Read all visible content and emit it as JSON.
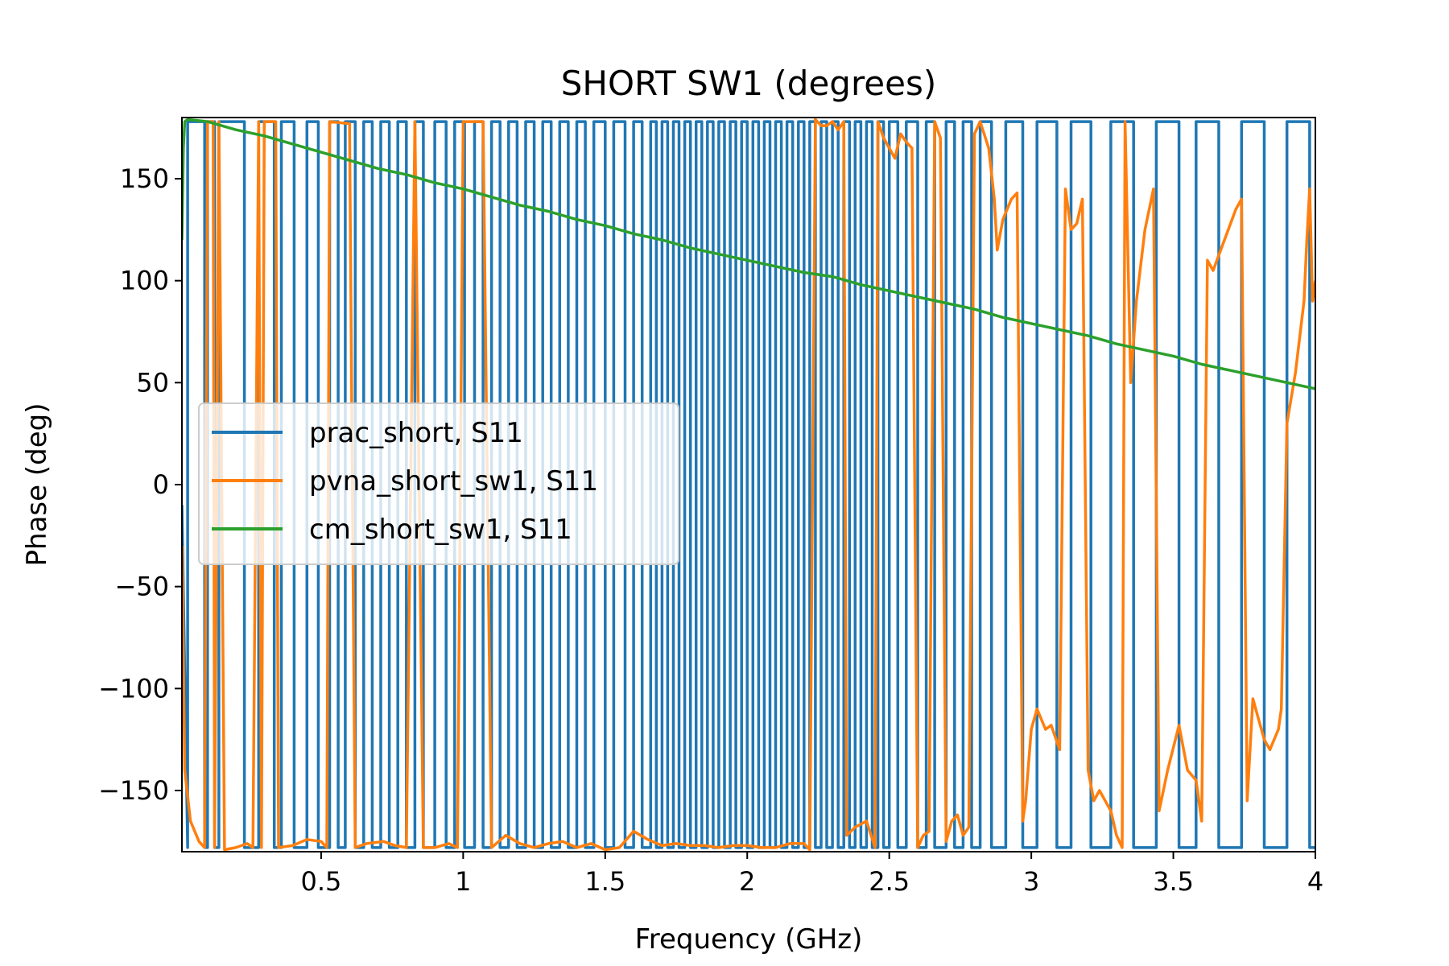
{
  "chart_data": {
    "type": "line",
    "title": "SHORT SW1 (degrees)",
    "xlabel": "Frequency (GHz)",
    "ylabel": "Phase (deg)",
    "xlim": [
      0.01,
      4.0
    ],
    "ylim": [
      -180,
      180
    ],
    "x_ticks": [
      0.5,
      1,
      1.5,
      2,
      2.5,
      3,
      3.5,
      4
    ],
    "x_tick_labels": [
      "0.5",
      "1",
      "1.5",
      "2",
      "2.5",
      "3",
      "3.5",
      "4"
    ],
    "y_ticks": [
      -150,
      -100,
      -50,
      0,
      50,
      100,
      150
    ],
    "y_tick_labels": [
      "−150",
      "−100",
      "−50",
      "0",
      "50",
      "100",
      "150"
    ],
    "grid": false,
    "legend_position": "center-left",
    "series": [
      {
        "name": "prac_short, S11",
        "color": "#1f77b4",
        "wrap_jump_ghz": [
          0.03,
          0.09,
          0.1,
          0.125,
          0.14,
          0.23,
          0.28,
          0.335,
          0.36,
          0.405,
          0.45,
          0.49,
          0.53,
          0.56,
          0.585,
          0.62,
          0.65,
          0.68,
          0.71,
          0.74,
          0.77,
          0.8,
          0.83,
          0.86,
          0.9,
          0.94,
          0.97,
          1.005,
          1.04,
          1.07,
          1.1,
          1.13,
          1.16,
          1.19,
          1.22,
          1.25,
          1.28,
          1.31,
          1.34,
          1.37,
          1.4,
          1.43,
          1.46,
          1.5,
          1.53,
          1.57,
          1.6,
          1.63,
          1.66,
          1.68,
          1.7,
          1.72,
          1.74,
          1.76,
          1.78,
          1.8,
          1.82,
          1.84,
          1.86,
          1.88,
          1.9,
          1.92,
          1.94,
          1.96,
          1.98,
          2.0,
          2.02,
          2.04,
          2.06,
          2.08,
          2.1,
          2.12,
          2.14,
          2.16,
          2.18,
          2.2,
          2.22,
          2.24,
          2.26,
          2.28,
          2.3,
          2.32,
          2.34,
          2.36,
          2.38,
          2.4,
          2.42,
          2.44,
          2.46,
          2.48,
          2.5,
          2.53,
          2.56,
          2.6,
          2.63,
          2.66,
          2.7,
          2.73,
          2.76,
          2.79,
          2.82,
          2.86,
          2.91,
          2.97,
          3.02,
          3.09,
          3.14,
          3.21,
          3.28,
          3.36,
          3.44,
          3.52,
          3.58,
          3.66,
          3.74,
          3.82,
          3.9,
          3.98
        ]
      },
      {
        "name": "pvna_short_sw1, S11",
        "color": "#ff7f0e",
        "points": [
          [
            0.01,
            -30
          ],
          [
            0.02,
            -140
          ],
          [
            0.04,
            -165
          ],
          [
            0.07,
            -175
          ],
          [
            0.09,
            -178
          ],
          [
            0.1,
            178
          ],
          [
            0.12,
            178
          ],
          [
            0.125,
            -178
          ],
          [
            0.14,
            178
          ],
          [
            0.16,
            -179
          ],
          [
            0.2,
            -178
          ],
          [
            0.24,
            -176
          ],
          [
            0.26,
            -178
          ],
          [
            0.28,
            178
          ],
          [
            0.29,
            -178
          ],
          [
            0.3,
            178
          ],
          [
            0.34,
            178
          ],
          [
            0.35,
            -178
          ],
          [
            0.4,
            -177
          ],
          [
            0.45,
            -174
          ],
          [
            0.5,
            -175
          ],
          [
            0.52,
            -178
          ],
          [
            0.53,
            178
          ],
          [
            0.6,
            177
          ],
          [
            0.62,
            -178
          ],
          [
            0.66,
            -176
          ],
          [
            0.72,
            -175
          ],
          [
            0.76,
            -177
          ],
          [
            0.8,
            -178
          ],
          [
            0.83,
            178
          ],
          [
            0.86,
            -178
          ],
          [
            0.9,
            -178
          ],
          [
            0.95,
            -176
          ],
          [
            0.98,
            -178
          ],
          [
            1.0,
            178
          ],
          [
            1.07,
            178
          ],
          [
            1.1,
            -178
          ],
          [
            1.15,
            -172
          ],
          [
            1.2,
            -176
          ],
          [
            1.25,
            -178
          ],
          [
            1.3,
            -176
          ],
          [
            1.35,
            -175
          ],
          [
            1.4,
            -178
          ],
          [
            1.45,
            -176
          ],
          [
            1.5,
            -179
          ],
          [
            1.55,
            -178
          ],
          [
            1.6,
            -170
          ],
          [
            1.65,
            -174
          ],
          [
            1.7,
            -177
          ],
          [
            1.75,
            -176
          ],
          [
            1.8,
            -177
          ],
          [
            1.85,
            -177
          ],
          [
            1.9,
            -178
          ],
          [
            1.95,
            -177
          ],
          [
            2.0,
            -177
          ],
          [
            2.05,
            -178
          ],
          [
            2.1,
            -178
          ],
          [
            2.15,
            -176
          ],
          [
            2.2,
            -176
          ],
          [
            2.22,
            -179
          ],
          [
            2.24,
            179
          ],
          [
            2.26,
            176
          ],
          [
            2.28,
            176
          ],
          [
            2.3,
            178
          ],
          [
            2.32,
            174
          ],
          [
            2.34,
            178
          ],
          [
            2.35,
            -172
          ],
          [
            2.38,
            -168
          ],
          [
            2.42,
            -165
          ],
          [
            2.45,
            -178
          ],
          [
            2.46,
            178
          ],
          [
            2.48,
            170
          ],
          [
            2.5,
            165
          ],
          [
            2.52,
            160
          ],
          [
            2.54,
            172
          ],
          [
            2.56,
            168
          ],
          [
            2.58,
            165
          ],
          [
            2.6,
            -178
          ],
          [
            2.62,
            -172
          ],
          [
            2.64,
            -170
          ],
          [
            2.66,
            178
          ],
          [
            2.68,
            170
          ],
          [
            2.7,
            -175
          ],
          [
            2.72,
            -165
          ],
          [
            2.74,
            -162
          ],
          [
            2.76,
            -172
          ],
          [
            2.78,
            -168
          ],
          [
            2.8,
            172
          ],
          [
            2.82,
            178
          ],
          [
            2.85,
            165
          ],
          [
            2.87,
            140
          ],
          [
            2.88,
            115
          ],
          [
            2.9,
            130
          ],
          [
            2.93,
            140
          ],
          [
            2.95,
            143
          ],
          [
            2.97,
            -165
          ],
          [
            2.98,
            -155
          ],
          [
            3.0,
            -120
          ],
          [
            3.02,
            -110
          ],
          [
            3.05,
            -120
          ],
          [
            3.07,
            -118
          ],
          [
            3.1,
            -130
          ],
          [
            3.12,
            145
          ],
          [
            3.14,
            125
          ],
          [
            3.16,
            128
          ],
          [
            3.18,
            140
          ],
          [
            3.2,
            -140
          ],
          [
            3.22,
            -155
          ],
          [
            3.24,
            -150
          ],
          [
            3.26,
            -155
          ],
          [
            3.28,
            -160
          ],
          [
            3.3,
            -172
          ],
          [
            3.32,
            -178
          ],
          [
            3.33,
            178
          ],
          [
            3.35,
            50
          ],
          [
            3.37,
            90
          ],
          [
            3.4,
            125
          ],
          [
            3.43,
            145
          ],
          [
            3.45,
            -160
          ],
          [
            3.48,
            -140
          ],
          [
            3.52,
            -118
          ],
          [
            3.55,
            -140
          ],
          [
            3.58,
            -145
          ],
          [
            3.6,
            -165
          ],
          [
            3.62,
            110
          ],
          [
            3.64,
            105
          ],
          [
            3.68,
            120
          ],
          [
            3.72,
            135
          ],
          [
            3.74,
            140
          ],
          [
            3.76,
            -155
          ],
          [
            3.78,
            -105
          ],
          [
            3.8,
            -115
          ],
          [
            3.82,
            -125
          ],
          [
            3.84,
            -130
          ],
          [
            3.87,
            -120
          ],
          [
            3.88,
            -110
          ],
          [
            3.9,
            30
          ],
          [
            3.93,
            55
          ],
          [
            3.96,
            90
          ],
          [
            3.97,
            120
          ],
          [
            3.98,
            145
          ],
          [
            3.99,
            90
          ],
          [
            4.0,
            100
          ]
        ]
      },
      {
        "name": "cm_short_sw1, S11",
        "color": "#2ca02c",
        "points": [
          [
            0.01,
            120
          ],
          [
            0.015,
            165
          ],
          [
            0.02,
            178
          ],
          [
            0.03,
            179
          ],
          [
            0.1,
            178
          ],
          [
            0.2,
            174
          ],
          [
            0.3,
            171
          ],
          [
            0.4,
            167
          ],
          [
            0.5,
            163
          ],
          [
            0.6,
            159
          ],
          [
            0.7,
            155
          ],
          [
            0.8,
            152
          ],
          [
            0.9,
            148
          ],
          [
            1.0,
            145
          ],
          [
            1.1,
            141
          ],
          [
            1.2,
            137
          ],
          [
            1.3,
            134
          ],
          [
            1.4,
            130
          ],
          [
            1.5,
            127
          ],
          [
            1.6,
            123
          ],
          [
            1.7,
            120
          ],
          [
            1.8,
            116
          ],
          [
            1.9,
            113
          ],
          [
            2.0,
            110
          ],
          [
            2.1,
            107
          ],
          [
            2.2,
            104
          ],
          [
            2.3,
            102
          ],
          [
            2.4,
            98
          ],
          [
            2.5,
            95
          ],
          [
            2.6,
            92
          ],
          [
            2.7,
            89
          ],
          [
            2.8,
            86
          ],
          [
            2.9,
            82
          ],
          [
            3.0,
            79
          ],
          [
            3.1,
            76
          ],
          [
            3.2,
            73
          ],
          [
            3.3,
            69
          ],
          [
            3.4,
            66
          ],
          [
            3.5,
            63
          ],
          [
            3.6,
            59
          ],
          [
            3.7,
            56
          ],
          [
            3.8,
            53
          ],
          [
            3.9,
            50
          ],
          [
            4.0,
            47
          ]
        ]
      }
    ]
  }
}
